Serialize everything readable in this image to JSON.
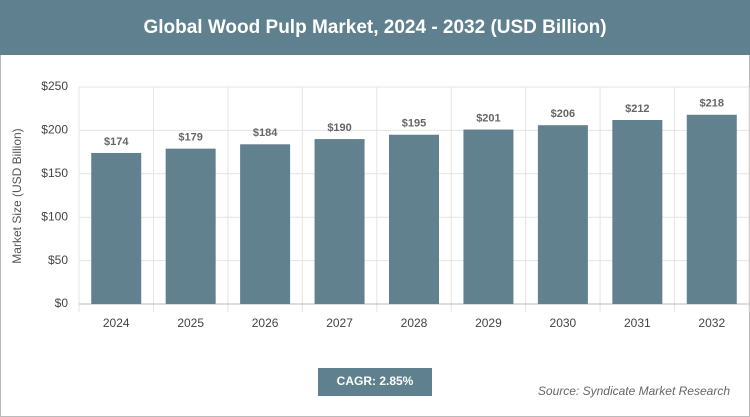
{
  "chart_data": {
    "type": "bar",
    "title": "Global Wood Pulp Market, 2024 - 2032 (USD Billion)",
    "y_label": "Market Size (USD Billion)",
    "categories": [
      "2024",
      "2025",
      "2026",
      "2027",
      "2028",
      "2029",
      "2030",
      "2031",
      "2032"
    ],
    "values": [
      174,
      179,
      184,
      190,
      195,
      201,
      206,
      212,
      218
    ],
    "value_labels": [
      "$174",
      "$179",
      "$184",
      "$190",
      "$195",
      "$201",
      "$206",
      "$212",
      "$218"
    ],
    "color": "#62818f",
    "ylim": [
      0,
      250
    ],
    "yticks": [
      {
        "value": 0,
        "label": "$0"
      },
      {
        "value": 50,
        "label": "$50"
      },
      {
        "value": 100,
        "label": "$100"
      },
      {
        "value": 150,
        "label": "$150"
      },
      {
        "value": 200,
        "label": "$200"
      },
      {
        "value": 250,
        "label": "$250"
      }
    ],
    "grid": true,
    "annotation": "CAGR: 2.85%",
    "source": "Source: Syndicate Market Research"
  }
}
